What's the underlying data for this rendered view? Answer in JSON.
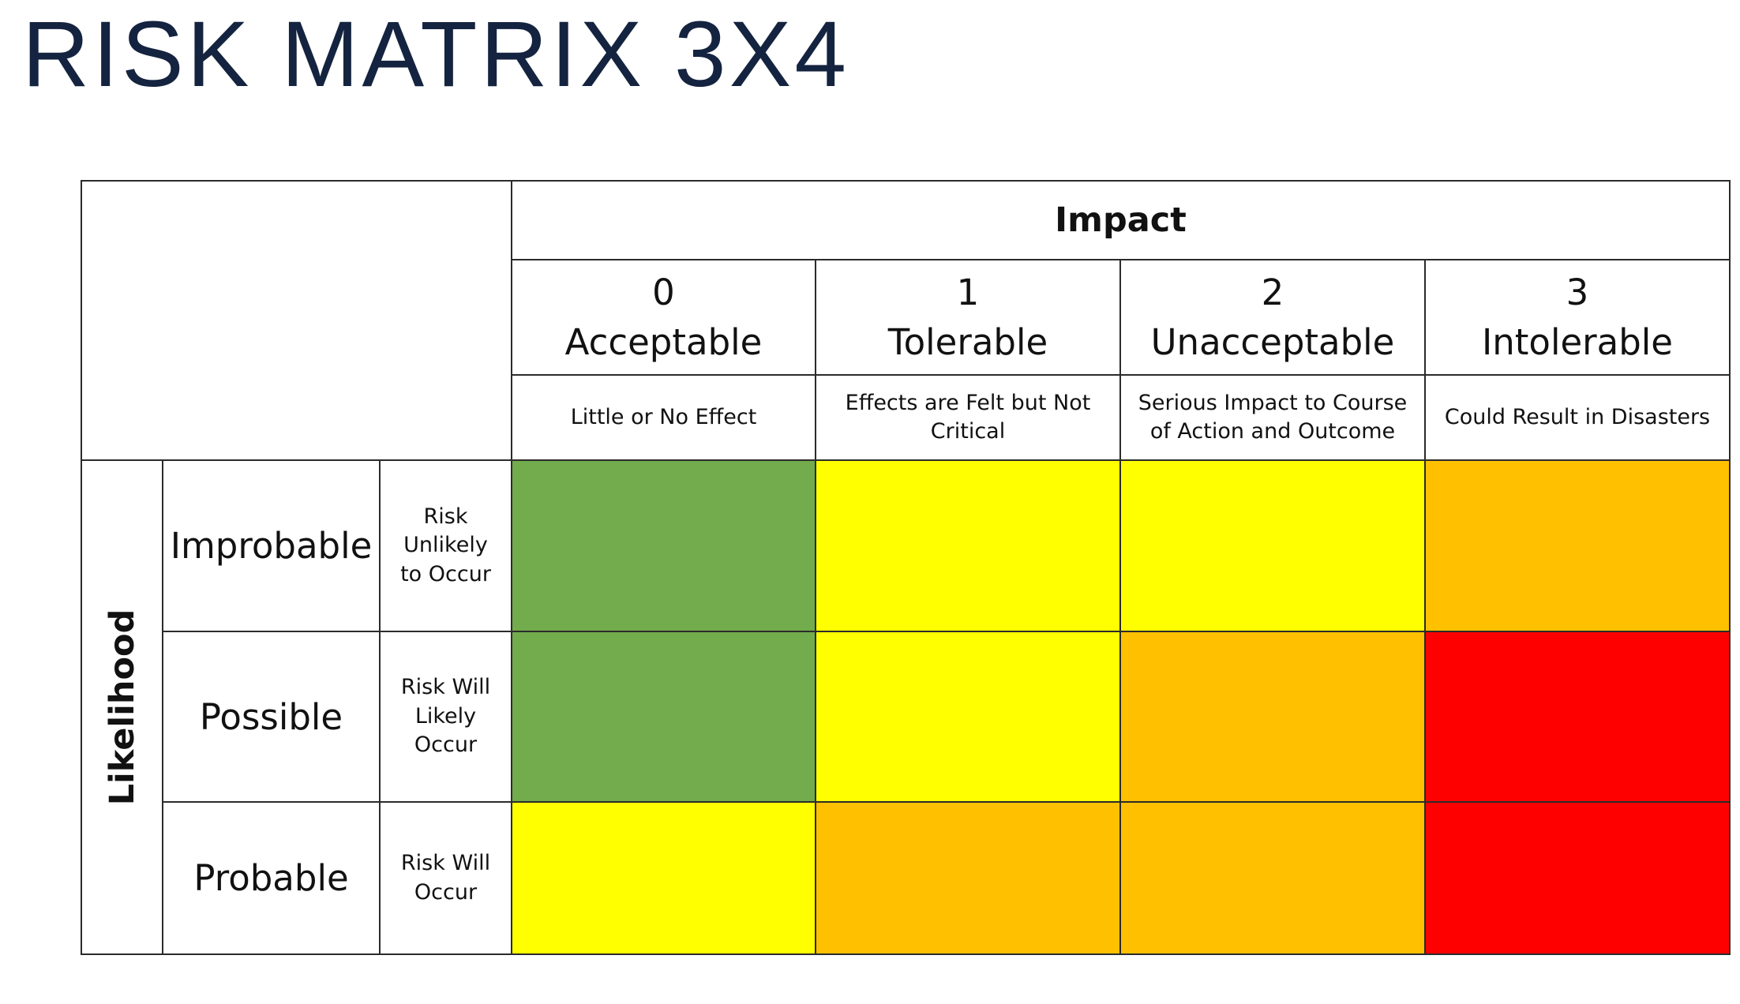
{
  "title": "RISK MATRIX 3X4",
  "matrix": {
    "impact_label": "Impact",
    "likelihood_label": "Likelihood",
    "impact_levels": [
      {
        "number": "0",
        "name": "Acceptable",
        "description": "Little or No Effect"
      },
      {
        "number": "1",
        "name": "Tolerable",
        "description": "Effects are Felt but Not Critical"
      },
      {
        "number": "2",
        "name": "Unacceptable",
        "description": "Serious Impact to Course of Action and Outcome"
      },
      {
        "number": "3",
        "name": "Intolerable",
        "description": "Could Result in Disasters"
      }
    ],
    "likelihood_levels": [
      {
        "name": "Improbable",
        "description": "Risk Unlikely to Occur"
      },
      {
        "name": "Possible",
        "description": "Risk Will Likely Occur"
      },
      {
        "name": "Probable",
        "description": "Risk Will Occur"
      }
    ],
    "colors": {
      "green": "#72ac4c",
      "yellow": "#ffff00",
      "orange": "#ffc000",
      "red": "#ff0000"
    },
    "cells": [
      [
        "green",
        "yellow",
        "yellow",
        "orange"
      ],
      [
        "green",
        "yellow",
        "orange",
        "red"
      ],
      [
        "yellow",
        "orange",
        "orange",
        "red"
      ]
    ]
  }
}
